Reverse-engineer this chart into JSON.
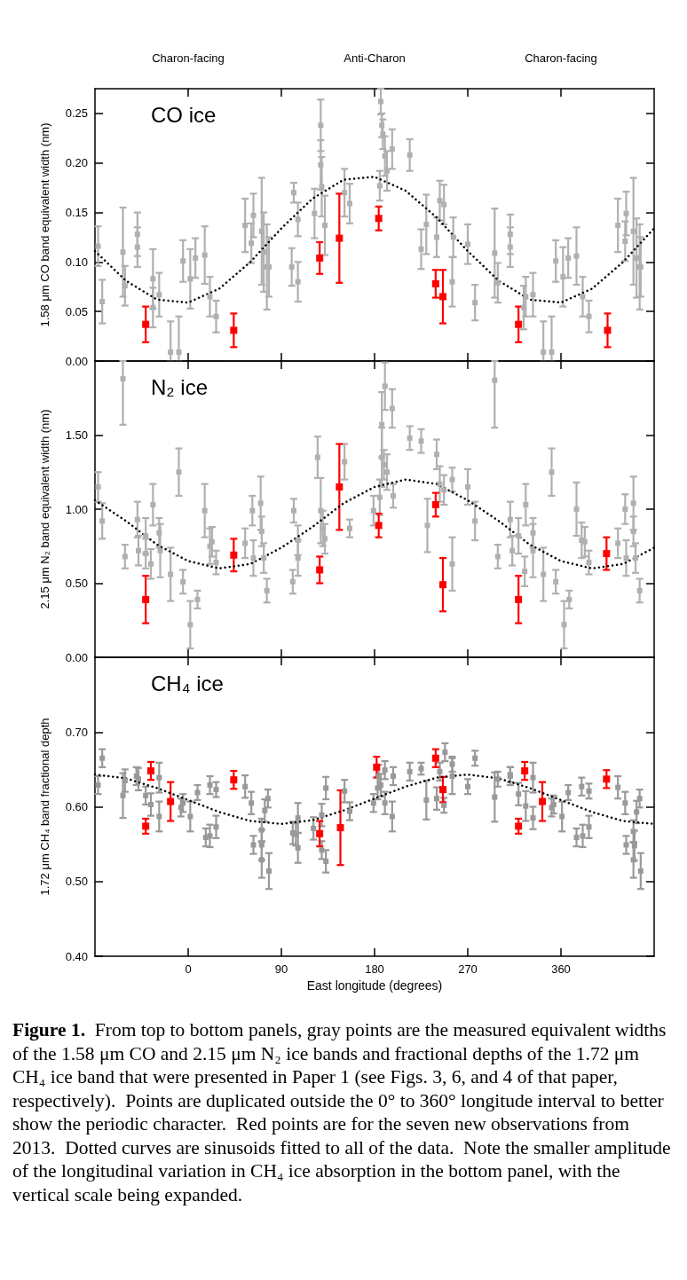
{
  "chart_data": [
    {
      "type": "scatter",
      "title": "CO ice",
      "ylabel": "1.58 μm CO band equivalent width (nm)",
      "tick_labels": "y",
      "marker": "square",
      "xlim": [
        -90,
        450
      ],
      "xticks": [
        0,
        90,
        180,
        270,
        360
      ],
      "annotations": [
        "Charon-facing",
        "Anti-Charon",
        "Charon-facing"
      ],
      "ylim": [
        0,
        0.275
      ],
      "yticks": [
        {
          "value": 0,
          "label": "0.00"
        },
        {
          "value": 0.05,
          "label": "0.05"
        },
        {
          "value": 0.1,
          "label": "0.10"
        },
        {
          "value": 0.15,
          "label": "0.15"
        },
        {
          "value": 0.2,
          "label": "0.20"
        },
        {
          "value": 0.25,
          "label": "0.25"
        }
      ],
      "series": [
        {
          "color": "#b0b0b0",
          "x": [
            -87,
            -83,
            -63,
            -61,
            -49,
            -49,
            -34,
            -34,
            -28,
            -17,
            -9,
            -5,
            2,
            7,
            16,
            21,
            27,
            55,
            61,
            63,
            71,
            73,
            76,
            78,
            100,
            102,
            106,
            106,
            122,
            128,
            128,
            129,
            132,
            151,
            156,
            185,
            186,
            187,
            188,
            190,
            192,
            197,
            214,
            225,
            230,
            240,
            243,
            247,
            255,
            256,
            270,
            277,
            296,
            299,
            311,
            311,
            324,
            326,
            333,
            343,
            351,
            355,
            362,
            367,
            375,
            381,
            387,
            415,
            422,
            423,
            430,
            433,
            436,
            437
          ],
          "values": [
            0.116,
            0.06,
            0.11,
            0.076,
            0.128,
            0.115,
            0.083,
            0.054,
            0.067,
            0.009,
            0.009,
            0.101,
            0.083,
            0.104,
            0.107,
            0.065,
            0.045,
            0.137,
            0.119,
            0.147,
            0.131,
            0.11,
            0.095,
            0.095,
            0.095,
            0.17,
            0.08,
            0.143,
            0.149,
            0.238,
            0.198,
            0.176,
            0.137,
            0.17,
            0.159,
            0.177,
            0.262,
            0.238,
            0.229,
            0.207,
            0.192,
            0.214,
            0.208,
            0.113,
            0.138,
            0.125,
            0.162,
            0.158,
            0.08,
            0.125,
            0.118,
            0.059,
            0.109,
            0.079,
            0.128,
            0.115,
            0.054,
            0.065,
            0.067,
            0.009,
            0.009,
            0.101,
            0.085,
            0.104,
            0.106,
            0.065,
            0.045,
            0.137,
            0.121,
            0.149,
            0.131,
            0.104,
            0.095,
            0.095
          ],
          "errors": [
            0.02,
            0.022,
            0.045,
            0.02,
            0.022,
            0.02,
            0.03,
            0.02,
            0.022,
            [
              0,
              0.04
            ],
            [
              0,
              0.045
            ],
            0.021,
            0.03,
            0.02,
            0.029,
            0.02,
            0.016,
            0.027,
            0.02,
            0.022,
            0.054,
            0.04,
            0.043,
            0.03,
            0.019,
            0.01,
            0.02,
            0.017,
            0.025,
            0.026,
            0.025,
            0.03,
            0.03,
            0.024,
            0.02,
            0.015,
            0.013,
            0.012,
            0.015,
            0.02,
            0.02,
            0.02,
            0.016,
            0.02,
            0.03,
            0.02,
            0.02,
            0.02,
            0.025,
            0.02,
            0.02,
            0.018,
            0.045,
            0.02,
            0.02,
            0.02,
            0.022,
            0.02,
            0.022,
            [
              0,
              0.04
            ],
            [
              0,
              0.045
            ],
            0.021,
            0.03,
            0.02,
            0.029,
            0.02,
            0.016,
            0.027,
            0.02,
            0.022,
            0.054,
            0.04,
            0.043,
            0.03
          ]
        },
        {
          "color": "#ff0000",
          "x": [
            -41,
            44,
            127,
            146,
            184,
            239,
            246,
            319,
            405
          ],
          "values": [
            0.037,
            0.031,
            0.104,
            0.124,
            0.144,
            0.078,
            0.065,
            0.037,
            0.031
          ],
          "errors": [
            0.018,
            0.017,
            0.016,
            0.045,
            0.012,
            0.014,
            0.027,
            0.018,
            0.017
          ]
        },
        {
          "type": "line",
          "color": "#000000",
          "marker": "none",
          "line_style": "dotted",
          "x": [
            -90,
            -60,
            -30,
            0,
            30,
            60,
            90,
            120,
            150,
            180,
            210,
            240,
            270,
            300,
            330,
            360,
            390,
            420,
            450
          ],
          "values": [
            0.111,
            0.081,
            0.062,
            0.059,
            0.073,
            0.1,
            0.134,
            0.164,
            0.183,
            0.186,
            0.172,
            0.145,
            0.111,
            0.081,
            0.062,
            0.059,
            0.073,
            0.1,
            0.134
          ]
        }
      ]
    },
    {
      "type": "scatter",
      "title": "N₂ ice",
      "ylabel": "2.15 μm N₂ band equivalent width (nm)",
      "tick_labels": "y",
      "marker": "square",
      "xlim": [
        -90,
        450
      ],
      "xticks": [
        0,
        90,
        180,
        270,
        360
      ],
      "ylim": [
        0,
        2
      ],
      "yticks": [
        {
          "value": 0,
          "label": "0.00"
        },
        {
          "value": 0.5,
          "label": "0.50"
        },
        {
          "value": 1,
          "label": "1.00"
        },
        {
          "value": 1.5,
          "label": "1.50"
        }
      ],
      "series": [
        {
          "color": "#b0b0b0",
          "x": [
            -87,
            -83,
            -63,
            -61,
            -49,
            -48,
            -41,
            -41,
            -36,
            -34,
            -28,
            -27,
            -17,
            -9,
            -5,
            2,
            9,
            16,
            21,
            23,
            27,
            55,
            62,
            63,
            70,
            71,
            73,
            76,
            101,
            102,
            106,
            106,
            125,
            128,
            130,
            132,
            151,
            156,
            179,
            185,
            187,
            187,
            189,
            190,
            192,
            197,
            198,
            214,
            225,
            231,
            240,
            243,
            247,
            255,
            255,
            270,
            277,
            296,
            299,
            311,
            313,
            319,
            325,
            326,
            333,
            333,
            343,
            351,
            355,
            363,
            368,
            375,
            380,
            383,
            387,
            415,
            422,
            423,
            430,
            430,
            432,
            436
          ],
          "values": [
            1.15,
            0.92,
            1.88,
            0.68,
            0.93,
            0.72,
            0.82,
            0.7,
            0.63,
            1.03,
            0.84,
            0.72,
            0.56,
            1.25,
            0.51,
            0.22,
            0.39,
            0.99,
            0.75,
            0.78,
            0.64,
            0.77,
            0.99,
            0.67,
            1.04,
            0.85,
            0.67,
            0.45,
            0.51,
            0.99,
            0.67,
            0.79,
            1.35,
            0.99,
            0.87,
            0.8,
            1.32,
            0.87,
            0.99,
            1.08,
            1.57,
            1.35,
            1.3,
            1.83,
            1.25,
            1.68,
            1.09,
            1.48,
            1.46,
            0.89,
            1.37,
            1.17,
            1.13,
            1.2,
            0.63,
            1.15,
            0.92,
            1.87,
            0.68,
            0.93,
            0.72,
            0.82,
            0.58,
            1.03,
            0.84,
            0.72,
            0.56,
            1.25,
            0.51,
            0.22,
            0.39,
            1.0,
            0.79,
            0.78,
            0.64,
            0.77,
            1.0,
            0.67,
            1.04,
            0.85,
            0.67,
            0.45
          ],
          "errors": [
            0.1,
            0.12,
            [
              1.57,
              2
            ],
            0.08,
            0.12,
            0.1,
            0.12,
            0.1,
            0.1,
            0.14,
            0.1,
            0.18,
            0.18,
            0.16,
            0.08,
            0.16,
            0.06,
            0.18,
            0.12,
            0.1,
            0.08,
            0.1,
            0.1,
            0.12,
            0.18,
            0.1,
            0.1,
            0.08,
            0.08,
            0.08,
            0.12,
            0.1,
            0.14,
            0.22,
            0.12,
            0.1,
            0.12,
            0.06,
            0.1,
            0.12,
            0.22,
            0.2,
            0.1,
            0.16,
            0.12,
            0.13,
            0.08,
            0.08,
            0.08,
            0.18,
            0.1,
            0.12,
            0.1,
            0.08,
            0.18,
            0.12,
            0.13,
            [
              1.55,
              2
            ],
            0.08,
            0.12,
            0.1,
            0.12,
            0.1,
            0.14,
            0.1,
            0.18,
            0.18,
            0.16,
            0.08,
            0.16,
            0.06,
            0.18,
            0.12,
            0.1,
            0.08,
            0.1,
            0.1,
            0.12,
            0.18,
            0.1,
            0.1,
            0.08
          ]
        },
        {
          "color": "#ff0000",
          "x": [
            -41,
            44,
            127,
            146,
            184,
            239,
            246,
            319,
            404
          ],
          "values": [
            0.39,
            0.69,
            0.59,
            1.15,
            0.89,
            1.03,
            0.49,
            0.39,
            0.7
          ],
          "errors": [
            0.16,
            0.11,
            0.09,
            0.29,
            0.08,
            0.08,
            0.18,
            0.16,
            0.11
          ]
        },
        {
          "type": "line",
          "color": "#000000",
          "marker": "none",
          "line_style": "dotted",
          "x": [
            -90,
            -60,
            -30,
            0,
            30,
            60,
            90,
            120,
            150,
            180,
            210,
            240,
            270,
            300,
            330,
            360,
            390,
            420,
            450
          ],
          "values": [
            1.06,
            0.92,
            0.76,
            0.65,
            0.6,
            0.63,
            0.74,
            0.88,
            1.04,
            1.15,
            1.2,
            1.17,
            1.06,
            0.92,
            0.76,
            0.65,
            0.6,
            0.63,
            0.74
          ]
        }
      ]
    },
    {
      "type": "scatter",
      "title": "CH₄ ice",
      "ylabel": "1.72 μm CH₄ band fractional depth",
      "xlabel": "East longitude (degrees)",
      "marker": "square",
      "xlim": [
        -90,
        450
      ],
      "xticks": [
        0,
        90,
        180,
        270,
        360
      ],
      "ylim": [
        0.4,
        0.8
      ],
      "yticks": [
        {
          "value": 0.4,
          "label": "0.40"
        },
        {
          "value": 0.5,
          "label": "0.50"
        },
        {
          "value": 0.6,
          "label": "0.60"
        },
        {
          "value": 0.7,
          "label": "0.70"
        }
      ],
      "annotations": [
        "Figure 1.",
        "From top to bottom panels, gray points are the measured equivalent widths of the 1.58 μm CO and 2.15 μm N₂ ice bands and fractional depths of the 1.72 μm CH₄ ice band that were presented in Paper 1 (see Figs. 3, 6, and 4 of that paper, respectively).  Points are duplicated outside the 0° to 360° longitude interval to better show the periodic character.  Red points are for the seven new observations from 2013.  Dotted curves are sinusoids fitted to all of the data.  Note the smaller amplitude of the longitudinal variation in CH₄ ice absorption in the bottom panel, with the vertical scale being expanded."
      ],
      "series": [
        {
          "color": "#999999",
          "x": [
            -87,
            -83,
            -63,
            -61,
            -50,
            -48,
            -41,
            -36,
            -28,
            -28,
            -7,
            -5,
            2,
            9,
            17,
            21,
            21,
            27,
            27,
            55,
            61,
            63,
            71,
            71,
            71,
            74,
            77,
            78,
            101,
            104,
            106,
            106,
            121,
            129,
            129,
            133,
            133,
            151,
            156,
            179,
            183,
            184,
            186,
            190,
            190,
            197,
            198,
            214,
            225,
            230,
            240,
            243,
            247,
            248,
            255,
            255,
            270,
            277,
            296,
            299,
            311,
            311,
            319,
            326,
            333,
            333,
            351,
            353,
            361,
            367,
            375,
            381,
            380,
            387,
            387,
            415,
            422,
            423,
            430,
            431,
            430,
            433,
            436,
            437
          ],
          "values": [
            0.629,
            0.665,
            0.615,
            0.635,
            0.641,
            0.637,
            0.615,
            0.603,
            0.587,
            0.639,
            0.599,
            0.605,
            0.587,
            0.619,
            0.559,
            0.561,
            0.629,
            0.623,
            0.573,
            0.627,
            0.605,
            0.549,
            0.569,
            0.549,
            0.529,
            0.595,
            0.611,
            0.514,
            0.565,
            0.563,
            0.585,
            0.545,
            0.571,
            0.589,
            0.542,
            0.527,
            0.625,
            0.621,
            0.594,
            0.605,
            0.625,
            0.641,
            0.629,
            0.649,
            0.605,
            0.587,
            0.641,
            0.647,
            0.651,
            0.609,
            0.611,
            0.647,
            0.602,
            0.673,
            0.657,
            0.641,
            0.627,
            0.665,
            0.613,
            0.637,
            0.641,
            0.643,
            0.617,
            0.601,
            0.639,
            0.585,
            0.599,
            0.603,
            0.587,
            0.619,
            0.559,
            0.561,
            0.627,
            0.621,
            0.573,
            0.626,
            0.605,
            0.549,
            0.567,
            0.548,
            0.529,
            0.593,
            0.611,
            0.514
          ],
          "errors": [
            0.012,
            0.012,
            0.03,
            0.015,
            0.012,
            0.015,
            0.012,
            0.015,
            0.02,
            0.02,
            0.012,
            0.012,
            0.02,
            0.01,
            0.012,
            0.015,
            0.012,
            0.01,
            0.015,
            0.015,
            0.015,
            0.012,
            0.015,
            0.02,
            0.024,
            0.015,
            0.012,
            0.024,
            0.015,
            0.015,
            0.02,
            0.02,
            0.015,
            0.015,
            0.012,
            0.015,
            0.015,
            0.015,
            0.012,
            0.012,
            0.015,
            0.015,
            0.015,
            0.012,
            0.015,
            0.02,
            0.012,
            0.012,
            0.008,
            0.026,
            0.015,
            0.012,
            0.01,
            0.012,
            0.01,
            0.024,
            0.01,
            0.01,
            0.033,
            0.01,
            0.012,
            0.01,
            0.015,
            0.02,
            0.02,
            0.015,
            0.012,
            0.012,
            0.02,
            0.01,
            0.012,
            0.015,
            0.012,
            0.01,
            0.015,
            0.015,
            0.015,
            0.012,
            0.015,
            0.02,
            0.024,
            0.015,
            0.012,
            0.024
          ]
        },
        {
          "color": "#ff0000",
          "x": [
            -41,
            -36,
            -17,
            44,
            127,
            147,
            182,
            239,
            246,
            319,
            325,
            342,
            404
          ],
          "values": [
            0.574,
            0.648,
            0.607,
            0.636,
            0.564,
            0.572,
            0.653,
            0.665,
            0.623,
            0.574,
            0.648,
            0.607,
            0.637
          ],
          "errors": [
            0.01,
            0.012,
            0.026,
            0.012,
            0.017,
            0.05,
            0.014,
            0.012,
            0.017,
            0.01,
            0.012,
            0.026,
            0.012
          ]
        },
        {
          "type": "line",
          "color": "#000000",
          "marker": "none",
          "line_style": "dotted",
          "x": [
            -90,
            -60,
            -30,
            0,
            30,
            60,
            90,
            120,
            150,
            180,
            210,
            240,
            270,
            300,
            330,
            360,
            390,
            420,
            450
          ],
          "values": [
            0.643,
            0.638,
            0.625,
            0.609,
            0.593,
            0.581,
            0.577,
            0.582,
            0.595,
            0.611,
            0.627,
            0.639,
            0.643,
            0.638,
            0.625,
            0.609,
            0.593,
            0.581,
            0.577
          ]
        }
      ]
    }
  ]
}
